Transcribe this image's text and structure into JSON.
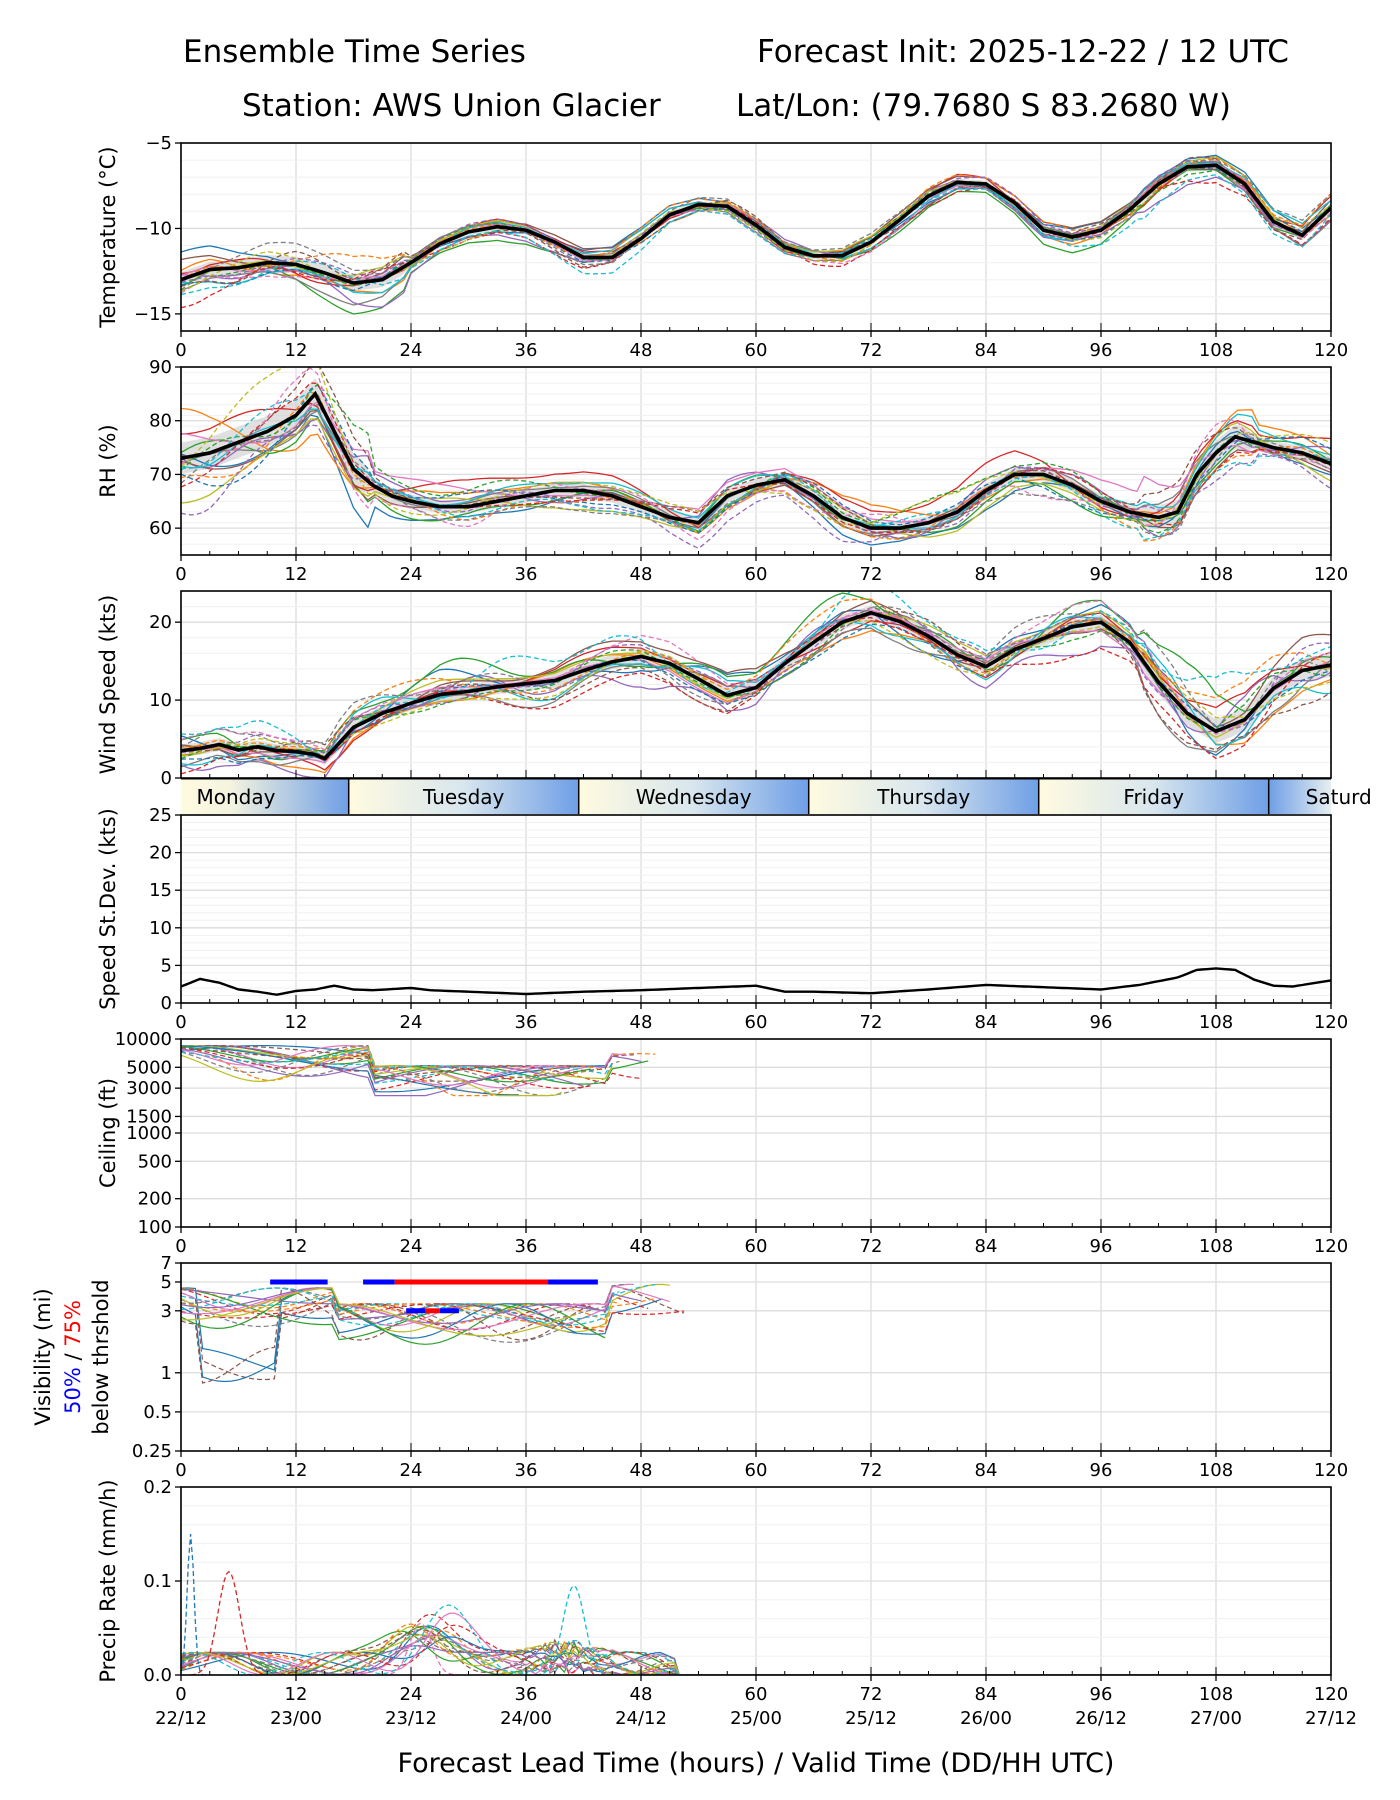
{
  "header": {
    "title": "Ensemble Time Series",
    "init": "Forecast Init: 2025-12-22 / 12 UTC",
    "station": "Station: AWS Union Glacier",
    "latlon": "Lat/Lon: (79.7680 S 83.2680 W)"
  },
  "x_axis": {
    "ticks": [
      0,
      12,
      24,
      36,
      48,
      60,
      72,
      84,
      96,
      108,
      120
    ],
    "labels": [
      "0",
      "12",
      "24",
      "36",
      "48",
      "60",
      "72",
      "84",
      "96",
      "108",
      "120"
    ],
    "valid_labels": [
      "22/12",
      "23/00",
      "23/12",
      "24/00",
      "24/12",
      "25/00",
      "25/12",
      "26/00",
      "26/12",
      "27/00",
      "27/12"
    ],
    "title": "Forecast Lead Time (hours) / Valid Time (DD/HH UTC)",
    "range": [
      0,
      120
    ]
  },
  "day_band": {
    "days": [
      "Monday",
      "Tuesday",
      "Wednesday",
      "Thursday",
      "Friday",
      "Saturday"
    ],
    "day_starts": [
      -2,
      17.5,
      41.5,
      65.5,
      89.5,
      113.5
    ],
    "visible_label": "Saturd"
  },
  "colors": {
    "ensemble": [
      "#1f77b4",
      "#ff7f0e",
      "#2ca02c",
      "#d62728",
      "#9467bd",
      "#8c564b",
      "#e377c2",
      "#7f7f7f",
      "#bcbd22",
      "#17becf"
    ],
    "mean": "#000000",
    "spread": "#cccccc",
    "vis50": "#0000ff",
    "vis75": "#ff0000",
    "day_center": "#fffbe0",
    "day_edge": "#6f9fe6"
  },
  "chart_data": [
    {
      "id": "temperature",
      "type": "line",
      "ylabel": "Temperature (°C)",
      "ylim": [
        -16,
        -5
      ],
      "yticks": [
        -15,
        -10,
        -5
      ],
      "yticklabels": [
        "−15",
        "−10",
        "−5"
      ],
      "members": 20,
      "mean": {
        "x": [
          0,
          3,
          6,
          9,
          12,
          15,
          18,
          21,
          24,
          27,
          30,
          33,
          36,
          39,
          42,
          45,
          48,
          51,
          54,
          57,
          60,
          63,
          66,
          69,
          72,
          75,
          78,
          81,
          84,
          87,
          90,
          93,
          96,
          99,
          102,
          105,
          108,
          111,
          114,
          117,
          120
        ],
        "y": [
          -13.0,
          -12.4,
          -12.3,
          -12.0,
          -12.1,
          -12.6,
          -13.2,
          -13.0,
          -12.0,
          -10.9,
          -10.2,
          -9.9,
          -10.1,
          -10.8,
          -11.7,
          -11.7,
          -10.6,
          -9.2,
          -8.6,
          -8.7,
          -9.8,
          -11.1,
          -11.6,
          -11.6,
          -10.8,
          -9.5,
          -8.1,
          -7.3,
          -7.4,
          -8.5,
          -10.1,
          -10.5,
          -10.1,
          -8.9,
          -7.4,
          -6.4,
          -6.3,
          -7.4,
          -9.6,
          -10.4,
          -8.8
        ]
      }
    },
    {
      "id": "rh",
      "type": "line",
      "ylabel": "RH (%)",
      "ylim": [
        55,
        90
      ],
      "yticks": [
        60,
        70,
        80,
        90
      ],
      "yticklabels": [
        "60",
        "70",
        "80",
        "90"
      ],
      "members": 20,
      "mean": {
        "x": [
          0,
          3,
          6,
          9,
          12,
          14,
          16,
          18,
          20,
          22,
          24,
          27,
          30,
          33,
          36,
          39,
          42,
          45,
          48,
          51,
          54,
          57,
          60,
          63,
          66,
          69,
          72,
          75,
          78,
          81,
          84,
          87,
          90,
          93,
          96,
          99,
          102,
          104,
          106,
          108,
          110,
          114,
          117,
          120
        ],
        "y": [
          73,
          74,
          76,
          78,
          81,
          85,
          78,
          71,
          68,
          66,
          65,
          64,
          64,
          65,
          66,
          67,
          67,
          66,
          64,
          62,
          61,
          66,
          68,
          69,
          66,
          62,
          60,
          60,
          61,
          63,
          67,
          70,
          70,
          68,
          65,
          63,
          62,
          63,
          70,
          74,
          77,
          75,
          74,
          72
        ]
      }
    },
    {
      "id": "wind",
      "type": "line",
      "ylabel": "Wind Speed (kts)",
      "ylim": [
        0,
        24
      ],
      "yticks": [
        0,
        10,
        20
      ],
      "yticklabels": [
        "0",
        "10",
        "20"
      ],
      "members": 20,
      "mean": {
        "x": [
          0,
          2,
          4,
          6,
          8,
          10,
          12,
          14,
          15,
          16,
          18,
          21,
          24,
          27,
          30,
          33,
          36,
          39,
          42,
          45,
          48,
          51,
          54,
          57,
          60,
          63,
          66,
          69,
          72,
          75,
          78,
          81,
          84,
          87,
          90,
          93,
          96,
          99,
          102,
          105,
          108,
          111,
          114,
          117,
          120
        ],
        "y": [
          3.5,
          3.8,
          4.3,
          3.6,
          4.0,
          3.5,
          3.4,
          3.0,
          2.5,
          3.8,
          6.5,
          8.3,
          9.6,
          10.7,
          11.1,
          11.7,
          12.1,
          12.5,
          13.8,
          14.9,
          15.6,
          14.7,
          12.7,
          10.6,
          11.6,
          14.7,
          17.4,
          20.0,
          21.2,
          20.1,
          18.2,
          15.8,
          14.3,
          16.5,
          17.9,
          19.4,
          20.0,
          17.4,
          12.3,
          8.3,
          6.0,
          7.5,
          11.5,
          13.8,
          14.5
        ]
      }
    },
    {
      "id": "speed_stdev",
      "type": "line",
      "ylabel": "Speed St.Dev. (kts)",
      "ylim": [
        0,
        25
      ],
      "yticks": [
        0,
        5,
        10,
        15,
        20,
        25
      ],
      "yticklabels": [
        "0",
        "5",
        "10",
        "15",
        "20",
        "25"
      ],
      "series": [
        {
          "name": "stdev",
          "x": [
            0,
            2,
            4,
            6,
            8,
            10,
            12,
            14,
            16,
            18,
            20,
            24,
            26,
            30,
            36,
            42,
            48,
            54,
            60,
            63,
            66,
            72,
            78,
            84,
            90,
            96,
            100,
            104,
            106,
            108,
            110,
            112,
            114,
            116,
            120
          ],
          "y": [
            2.2,
            3.2,
            2.7,
            1.8,
            1.5,
            1.1,
            1.6,
            1.8,
            2.3,
            1.8,
            1.7,
            2.0,
            1.7,
            1.5,
            1.2,
            1.5,
            1.7,
            2.0,
            2.3,
            1.5,
            1.5,
            1.3,
            1.8,
            2.4,
            2.1,
            1.8,
            2.4,
            3.4,
            4.4,
            4.6,
            4.4,
            3.1,
            2.3,
            2.2,
            3.0
          ]
        }
      ]
    },
    {
      "id": "ceiling",
      "type": "line",
      "ylabel": "Ceiling (ft)",
      "scale": "log",
      "ylim": [
        100,
        10000
      ],
      "yticks": [
        100,
        200,
        500,
        1000,
        1500,
        3000,
        5000,
        10000
      ],
      "yticklabels": [
        "100",
        "200",
        "500",
        "1000",
        "1500",
        "3000",
        "5000",
        "10000"
      ],
      "members": 20,
      "x_extent": [
        0,
        50
      ],
      "typical_range": [
        2500,
        10000
      ]
    },
    {
      "id": "visibility",
      "type": "line",
      "ylabel": "Visibility (mi)",
      "ylabel_50": "50%",
      "ylabel_sep": " / ",
      "ylabel_75": "75%",
      "ylabel_thr": "below thrshold",
      "scale": "log",
      "ylim": [
        0.25,
        7
      ],
      "yticks": [
        0.25,
        0.5,
        1,
        3,
        5,
        7
      ],
      "yticklabels": [
        "0.25",
        "0.5",
        "1",
        "3",
        "5",
        "7"
      ],
      "members": 20,
      "x_extent": [
        0,
        53
      ],
      "bars": [
        {
          "level": "50%",
          "y": 5,
          "x": [
            [
              9.3,
              15.3
            ],
            [
              19.0,
              22.3
            ],
            [
              38.3,
              43.5
            ]
          ]
        },
        {
          "level": "75%",
          "y": 5,
          "x": [
            [
              22.3,
              38.3
            ]
          ]
        },
        {
          "level": "50%",
          "y": 3,
          "x": [
            [
              23.5,
              25.5
            ],
            [
              27.0,
              29.0
            ]
          ]
        },
        {
          "level": "75%",
          "y": 3,
          "x": [
            [
              25.5,
              27.0
            ]
          ]
        }
      ]
    },
    {
      "id": "precip",
      "type": "line",
      "ylabel": "Precip Rate (mm/h)",
      "ylim": [
        0,
        0.2
      ],
      "yticks": [
        0.0,
        0.1,
        0.2
      ],
      "yticklabels": [
        "0.0",
        "0.1",
        "0.2"
      ],
      "members": 20,
      "notable": [
        {
          "x": 1,
          "y": 0.15
        },
        {
          "x": 5,
          "y": 0.11
        },
        {
          "x": 25,
          "y": 0.055
        },
        {
          "x": 41,
          "y": 0.095
        }
      ]
    }
  ]
}
